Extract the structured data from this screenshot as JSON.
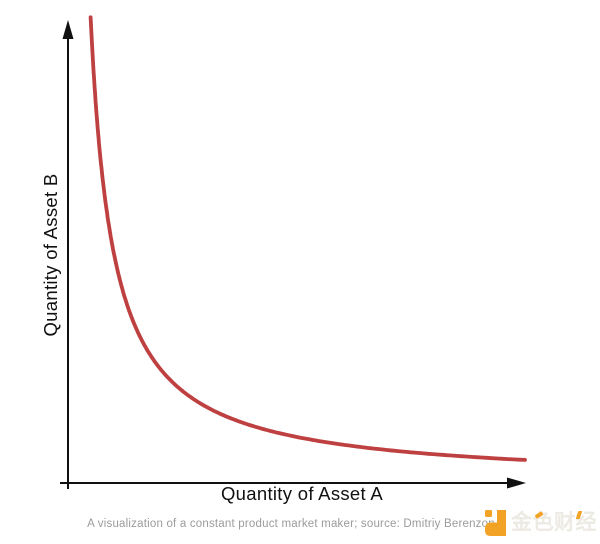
{
  "chart": {
    "y_axis_label": "Quantity of Asset B",
    "x_axis_label": "Quantity of Asset A",
    "axis_color": "#111111",
    "curve_color": "#BE4040"
  },
  "caption": {
    "text": "A visualization of a constant product market maker; source: Dmitriy Berenzon",
    "color": "#9b9b9b"
  },
  "logo": {
    "text": "金色财经",
    "icon": "jinse-finance-j-mark",
    "accent_color": "#F2A325",
    "text_color": "#EDEAE3"
  },
  "chart_data": {
    "type": "line",
    "title": "",
    "xlabel": "Quantity of Asset A",
    "ylabel": "Quantity of Asset B",
    "relation": "x * y = k (constant product AMM curve)",
    "k": 0.05,
    "x_range": [
      0.0495,
      1.0
    ],
    "points": {
      "x": [
        0.05,
        0.08,
        0.16,
        0.33,
        0.51,
        0.73,
        1.0
      ],
      "y": [
        1.0,
        0.63,
        0.31,
        0.15,
        0.1,
        0.07,
        0.05
      ]
    },
    "axis_ticks": "none",
    "grid": false,
    "legend": "none",
    "curve_color": "#BE4040"
  }
}
